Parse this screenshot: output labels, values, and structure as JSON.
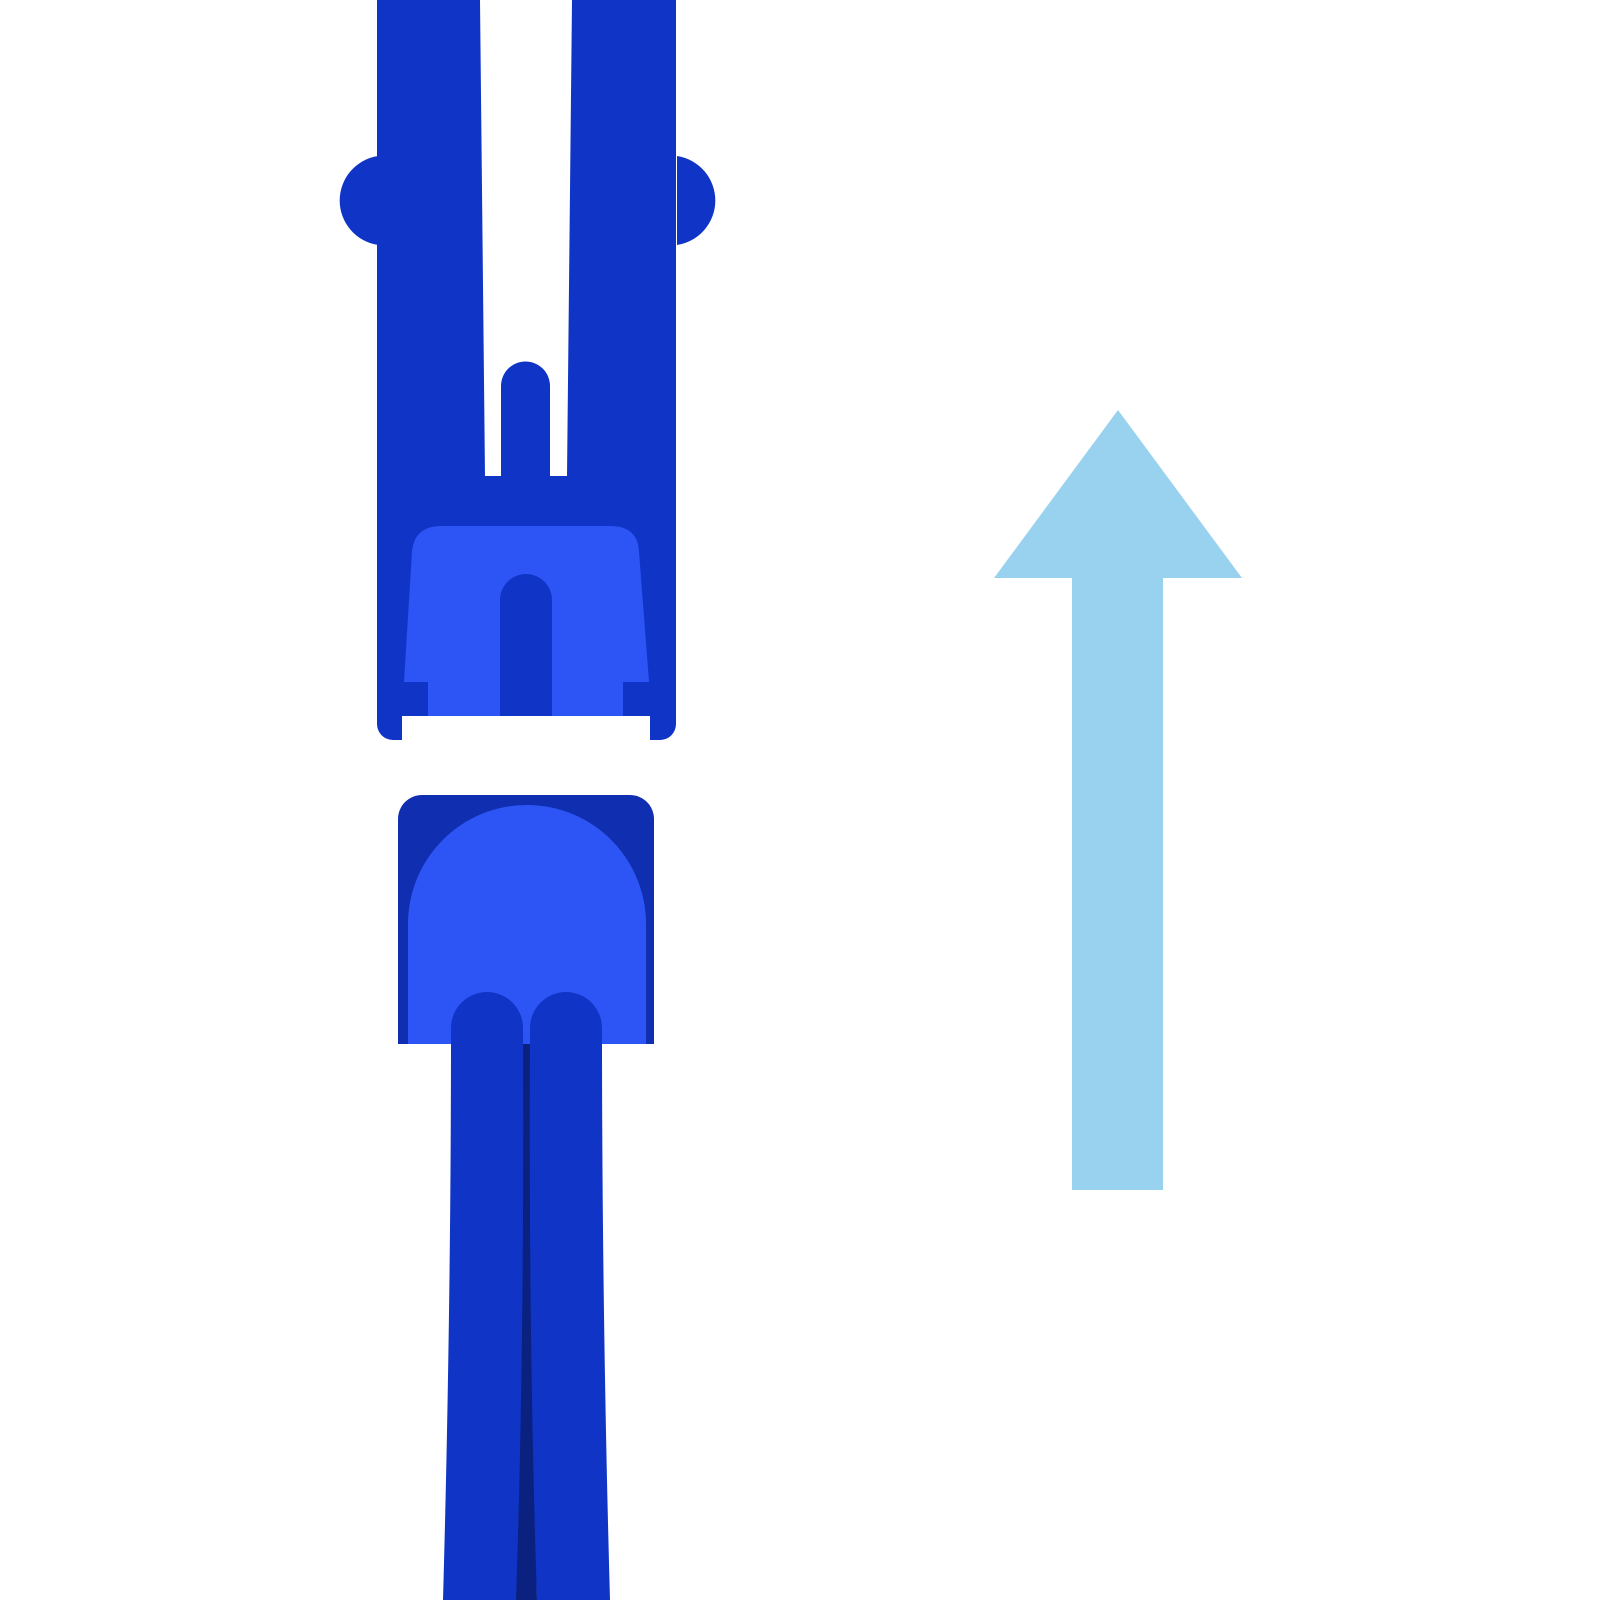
{
  "illustration": {
    "parts": {
      "upper_connector": {
        "icon": "usb-plug-icon",
        "color_outer": "#1035C6",
        "color_inner": "#2D55F6"
      },
      "lower_connector": {
        "icon": "usb-receptacle-icon",
        "color_outer": "#102EB0",
        "color_inner": "#2D55F6",
        "color_cable": "#1035C6",
        "color_cable_seam": "#0A2180"
      },
      "direction_arrow": {
        "icon": "arrow-up-icon",
        "direction": "up",
        "color": "#99D2EE"
      }
    },
    "background": "#FFFFFF"
  }
}
